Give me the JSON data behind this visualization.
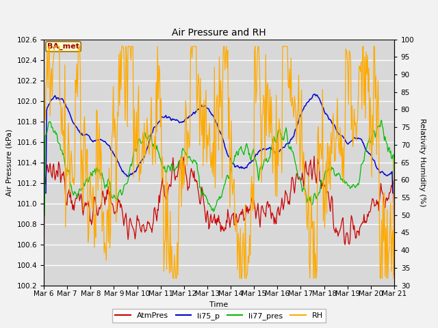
{
  "title": "Air Pressure and RH",
  "xlabel": "Time",
  "ylabel_left": "Air Pressure (kPa)",
  "ylabel_right": "Relativity Humidity (%)",
  "annotation": "BA_met",
  "ylim_left": [
    100.2,
    102.6
  ],
  "ylim_right": [
    30,
    100
  ],
  "yticks_left": [
    100.2,
    100.4,
    100.6,
    100.8,
    101.0,
    101.2,
    101.4,
    101.6,
    101.8,
    102.0,
    102.2,
    102.4,
    102.6
  ],
  "yticks_right": [
    30,
    35,
    40,
    45,
    50,
    55,
    60,
    65,
    70,
    75,
    80,
    85,
    90,
    95,
    100
  ],
  "n_points": 500,
  "xtick_days": [
    6,
    7,
    8,
    9,
    10,
    11,
    12,
    13,
    14,
    15,
    16,
    17,
    18,
    19,
    20,
    21
  ],
  "colors": {
    "AtmPres": "#cc0000",
    "li75_p": "#0000cc",
    "li77_pres": "#00bb00",
    "RH": "#ffaa00"
  },
  "fig_bg_color": "#f2f2f2",
  "plot_bg_color": "#d8d8d8",
  "grid_color": "#ffffff",
  "legend_labels": [
    "AtmPres",
    "li75_p",
    "li77_pres",
    "RH"
  ],
  "legend_colors": [
    "#cc0000",
    "#0000cc",
    "#00bb00",
    "#ffaa00"
  ],
  "title_fontsize": 10,
  "axis_label_fontsize": 8,
  "tick_fontsize": 7.5,
  "legend_fontsize": 8
}
